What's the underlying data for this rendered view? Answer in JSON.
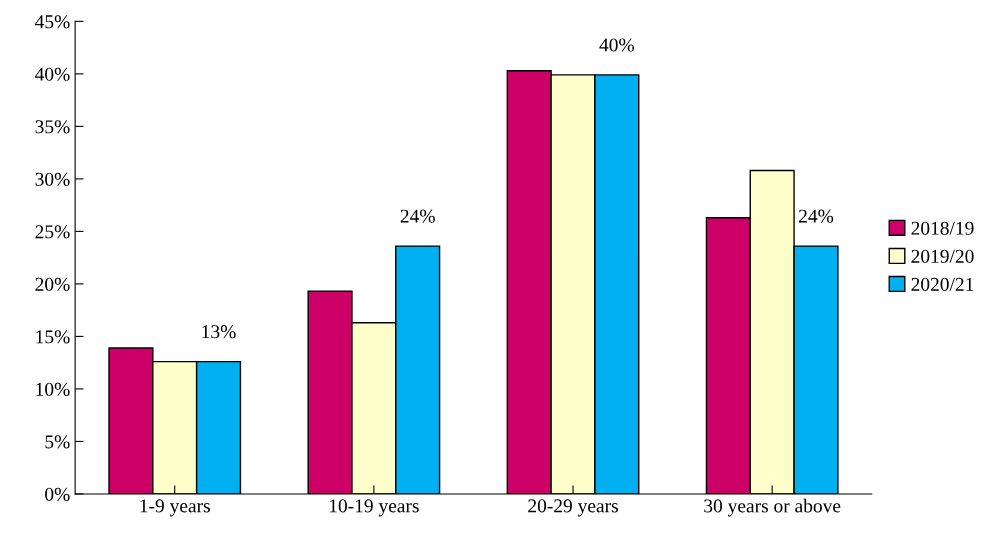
{
  "chart_data": {
    "type": "bar",
    "categories": [
      "1-9 years",
      "10-19 years",
      "20-29 years",
      "30 years or above"
    ],
    "series": [
      {
        "name": "2018/19",
        "color": "#cc0066",
        "values": [
          13.9,
          19.3,
          40.3,
          26.3
        ]
      },
      {
        "name": "2019/20",
        "color": "#ffffcc",
        "values": [
          12.6,
          16.3,
          39.9,
          30.8
        ]
      },
      {
        "name": "2020/21",
        "color": "#00b0f0",
        "values": [
          12.6,
          23.6,
          39.9,
          23.6
        ],
        "value_labels": [
          "13%",
          "24%",
          "40%",
          "24%"
        ]
      }
    ],
    "ylim": [
      0,
      45
    ],
    "yticks": [
      {
        "value": 0,
        "label": "0%"
      },
      {
        "value": 5,
        "label": "5%"
      },
      {
        "value": 10,
        "label": "10%"
      },
      {
        "value": 15,
        "label": "15%"
      },
      {
        "value": 20,
        "label": "20%"
      },
      {
        "value": 25,
        "label": "25%"
      },
      {
        "value": 30,
        "label": "30%"
      },
      {
        "value": 35,
        "label": "35%"
      },
      {
        "value": 40,
        "label": "40%"
      },
      {
        "value": 45,
        "label": "45%"
      }
    ],
    "grid": false,
    "legend": "right"
  }
}
